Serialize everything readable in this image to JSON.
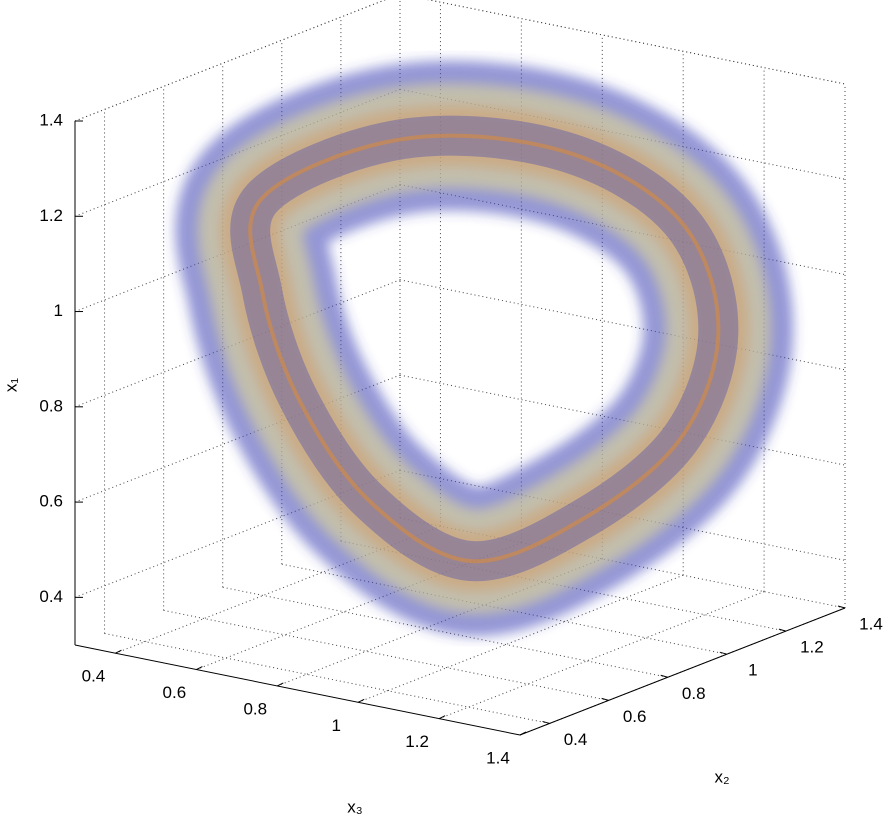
{
  "chart_data": {
    "type": "scatter3d",
    "xlabel": "x₃",
    "ylabel": "x₂",
    "zlabel": "x₁",
    "x3lim": [
      0.3,
      1.4
    ],
    "x3ticks": [
      0.4,
      0.6,
      0.8,
      1,
      1.2,
      1.4
    ],
    "x2lim": [
      0.3,
      1.4
    ],
    "x2ticks": [
      0.4,
      0.6,
      0.8,
      1,
      1.2,
      1.4
    ],
    "x1lim": [
      0.3,
      1.4
    ],
    "x1ticks": [
      0.4,
      0.6,
      0.8,
      1,
      1.2,
      1.4
    ],
    "grid": true,
    "colors": [
      "#3a40b4",
      "#e9e08c",
      "#d98a3c"
    ],
    "points": {
      "x3": [
        0.47,
        0.67,
        0.92,
        1.1,
        1.16,
        1.14,
        1.04,
        0.91,
        0.77,
        0.67,
        0.58
      ],
      "x2": [
        0.7,
        0.9,
        1.1,
        1.25,
        1.3,
        1.2,
        1.0,
        0.8,
        0.65,
        0.55,
        0.55
      ],
      "x1": [
        1.17,
        1.28,
        1.25,
        1.1,
        0.87,
        0.66,
        0.52,
        0.46,
        0.6,
        0.82,
        1.03
      ]
    }
  }
}
